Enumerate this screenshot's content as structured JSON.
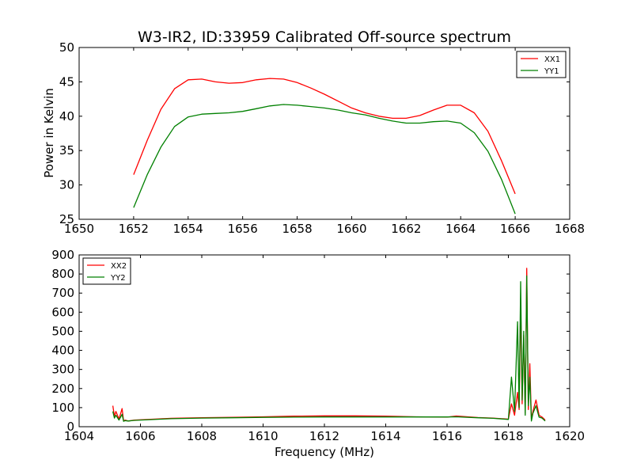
{
  "chart_data": [
    {
      "type": "line",
      "title": "W3-IR2, ID:33959 Calibrated Off-source spectrum",
      "xlabel": "",
      "ylabel": "Power in Kelvin",
      "xlim": [
        1650,
        1668
      ],
      "ylim": [
        25,
        50
      ],
      "xticks": [
        "1650",
        "1652",
        "1654",
        "1656",
        "1658",
        "1660",
        "1662",
        "1664",
        "1666",
        "1668"
      ],
      "yticks": [
        "25",
        "30",
        "35",
        "40",
        "45",
        "50"
      ],
      "legend_position": "top-right",
      "series": [
        {
          "name": "XX1",
          "color": "#ff0000",
          "x": [
            1652,
            1652.5,
            1653,
            1653.5,
            1654,
            1654.5,
            1655,
            1655.5,
            1656,
            1656.5,
            1657,
            1657.5,
            1658,
            1658.5,
            1659,
            1659.5,
            1660,
            1660.5,
            1661,
            1661.5,
            1662,
            1662.5,
            1663,
            1663.5,
            1664,
            1664.5,
            1665,
            1665.5,
            1666
          ],
          "y": [
            31.5,
            36.5,
            41.0,
            44.0,
            45.3,
            45.4,
            45.0,
            44.8,
            44.9,
            45.3,
            45.5,
            45.4,
            44.9,
            44.1,
            43.2,
            42.2,
            41.2,
            40.5,
            40.0,
            39.7,
            39.7,
            40.1,
            40.9,
            41.6,
            41.6,
            40.5,
            37.8,
            33.5,
            28.7
          ]
        },
        {
          "name": "YY1",
          "color": "#008000",
          "x": [
            1652,
            1652.5,
            1653,
            1653.5,
            1654,
            1654.5,
            1655,
            1655.5,
            1656,
            1656.5,
            1657,
            1657.5,
            1658,
            1658.5,
            1659,
            1659.5,
            1660,
            1660.5,
            1661,
            1661.5,
            1662,
            1662.5,
            1663,
            1663.5,
            1664,
            1664.5,
            1665,
            1665.5,
            1666
          ],
          "y": [
            26.7,
            31.5,
            35.5,
            38.5,
            39.9,
            40.3,
            40.4,
            40.5,
            40.7,
            41.1,
            41.5,
            41.7,
            41.6,
            41.4,
            41.2,
            40.9,
            40.5,
            40.2,
            39.7,
            39.3,
            39.0,
            39.0,
            39.2,
            39.3,
            39.0,
            37.6,
            34.9,
            30.8,
            25.8
          ]
        }
      ]
    },
    {
      "type": "line",
      "title": "",
      "xlabel": "Frequency (MHz)",
      "ylabel": "",
      "xlim": [
        1604,
        1620
      ],
      "ylim": [
        0,
        900
      ],
      "xticks": [
        "1604",
        "1606",
        "1608",
        "1610",
        "1612",
        "1614",
        "1616",
        "1618",
        "1620"
      ],
      "yticks": [
        "0",
        "100",
        "200",
        "300",
        "400",
        "500",
        "600",
        "700",
        "800",
        "900"
      ],
      "legend_position": "top-left",
      "series": [
        {
          "name": "XX2",
          "color": "#ff0000",
          "x": [
            1605.1,
            1605.15,
            1605.2,
            1605.3,
            1605.4,
            1605.45,
            1605.5,
            1605.6,
            1605.8,
            1606,
            1607,
            1608,
            1609,
            1610,
            1611,
            1612,
            1613,
            1614,
            1615,
            1616,
            1616.3,
            1617,
            1617.5,
            1618,
            1618.1,
            1618.2,
            1618.3,
            1618.35,
            1618.4,
            1618.45,
            1618.5,
            1618.55,
            1618.6,
            1618.65,
            1618.7,
            1618.75,
            1618.8,
            1618.9,
            1619.0,
            1619.1,
            1619.2
          ],
          "y": [
            110,
            55,
            80,
            40,
            95,
            30,
            35,
            30,
            35,
            36,
            44,
            47,
            49,
            52,
            55,
            57,
            57,
            55,
            52,
            50,
            56,
            48,
            45,
            40,
            120,
            60,
            180,
            90,
            660,
            120,
            480,
            70,
            830,
            90,
            330,
            40,
            80,
            140,
            60,
            50,
            35
          ]
        },
        {
          "name": "YY2",
          "color": "#008000",
          "x": [
            1605.1,
            1605.15,
            1605.2,
            1605.3,
            1605.4,
            1605.45,
            1605.5,
            1605.6,
            1605.8,
            1606,
            1607,
            1608,
            1609,
            1610,
            1611,
            1612,
            1613,
            1614,
            1615,
            1616,
            1616.3,
            1617,
            1617.5,
            1618,
            1618.1,
            1618.2,
            1618.3,
            1618.35,
            1618.4,
            1618.45,
            1618.5,
            1618.55,
            1618.6,
            1618.65,
            1618.7,
            1618.75,
            1618.8,
            1618.9,
            1619.0,
            1619.1,
            1619.2
          ],
          "y": [
            80,
            45,
            60,
            35,
            65,
            28,
            32,
            30,
            33,
            35,
            42,
            45,
            47,
            49,
            50,
            51,
            51,
            51,
            51,
            51,
            52,
            47,
            44,
            38,
            260,
            80,
            550,
            100,
            760,
            140,
            500,
            60,
            790,
            110,
            260,
            30,
            70,
            110,
            50,
            45,
            30
          ]
        }
      ]
    }
  ]
}
